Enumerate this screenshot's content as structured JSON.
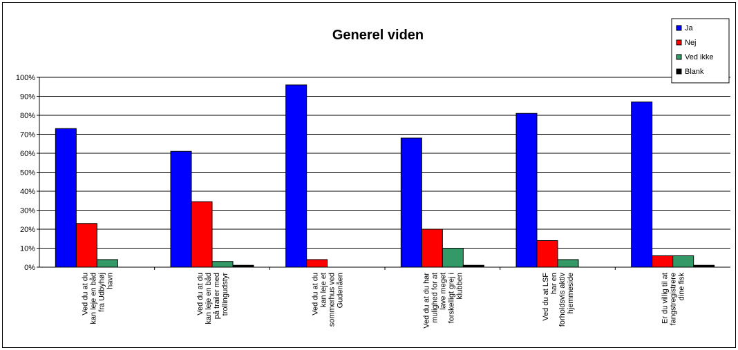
{
  "chart_data": {
    "type": "bar",
    "title": "Generel viden",
    "xlabel": "",
    "ylabel": "",
    "ylim": [
      0,
      100
    ],
    "yticks": [
      "0%",
      "10%",
      "20%",
      "30%",
      "40%",
      "50%",
      "60%",
      "70%",
      "80%",
      "90%",
      "100%"
    ],
    "grid": true,
    "legend_position": "top-right",
    "categories": [
      [
        "Ved du at du",
        "kan leje en båd",
        "fra Udbyhøj",
        "havn"
      ],
      [
        "Ved du at du",
        "kan leje en båd",
        "på trailer med",
        "trollingudstyr"
      ],
      [
        "Ved du at du",
        "kan leje et",
        "sommerhus ved",
        "Gudenåen"
      ],
      [
        "Ved du at du har",
        "mulighed for at",
        "lave meget",
        "forskelligt grej i",
        "klubben"
      ],
      [
        "Ved du at LSF",
        "har en",
        "forholdsvis aktiv",
        "hjemmeside"
      ],
      [
        "Er du villig til at",
        "fangstregistrere",
        "dine fisk"
      ]
    ],
    "series": [
      {
        "name": "Ja",
        "color": "#0000ff",
        "values": [
          73,
          61,
          96,
          68,
          81,
          87
        ]
      },
      {
        "name": "Nej",
        "color": "#ff0000",
        "values": [
          23,
          34.5,
          4,
          20,
          14,
          6
        ]
      },
      {
        "name": "Ved ikke",
        "color": "#339966",
        "values": [
          4,
          3,
          0,
          10,
          4,
          6
        ]
      },
      {
        "name": "Blank",
        "color": "#000000",
        "values": [
          0,
          1,
          0,
          1,
          0,
          1
        ]
      }
    ]
  }
}
